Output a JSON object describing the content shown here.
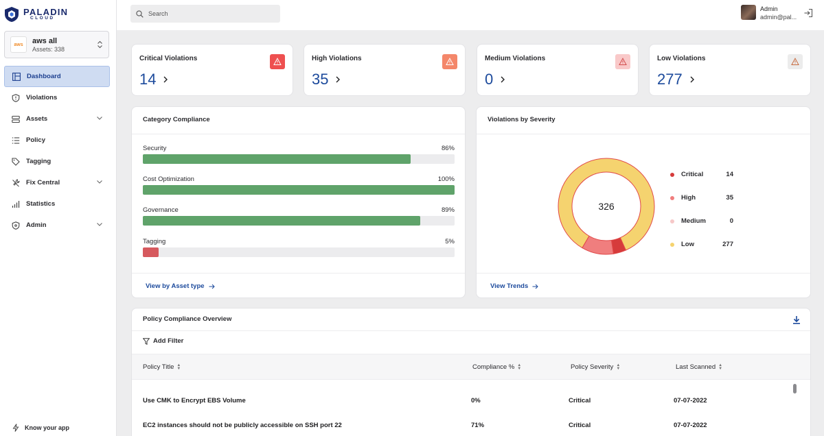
{
  "brand": {
    "name": "PALADIN",
    "sub": "CLOUD"
  },
  "account": {
    "logo": "aws",
    "name": "aws all",
    "assets": "Assets: 338"
  },
  "nav": [
    {
      "label": "Dashboard",
      "icon": "dashboard-icon",
      "active": true
    },
    {
      "label": "Violations",
      "icon": "shield-icon"
    },
    {
      "label": "Assets",
      "icon": "stack-icon",
      "expandable": true
    },
    {
      "label": "Policy",
      "icon": "list-icon"
    },
    {
      "label": "Tagging",
      "icon": "tag-icon"
    },
    {
      "label": "Fix Central",
      "icon": "wrench-icon",
      "expandable": true
    },
    {
      "label": "Statistics",
      "icon": "bars-icon"
    },
    {
      "label": "Admin",
      "icon": "shield-icon",
      "expandable": true
    }
  ],
  "know_app": "Know your app",
  "search": {
    "placeholder": "Search"
  },
  "user": {
    "name": "Admin",
    "email": "admin@pal..."
  },
  "severity_cards": [
    {
      "title": "Critical Violations",
      "count": "14",
      "color": "#ee5050",
      "icon_color": "#ffffff"
    },
    {
      "title": "High Violations",
      "count": "35",
      "color": "#f4876a",
      "icon_color": "#ffffff"
    },
    {
      "title": "Medium Violations",
      "count": "0",
      "color": "#f9c9c9",
      "icon_color": "#d24b4b"
    },
    {
      "title": "Low Violations",
      "count": "277",
      "color": "#ececec",
      "icon_color": "#c76b3f"
    }
  ],
  "category_compliance": {
    "title": "Category Compliance",
    "link": "View by Asset type",
    "items": [
      {
        "label": "Security",
        "pct": "86%",
        "value": 86,
        "color": "#5fa36a"
      },
      {
        "label": "Cost Optimization",
        "pct": "100%",
        "value": 100,
        "color": "#5fa36a"
      },
      {
        "label": "Governance",
        "pct": "89%",
        "value": 89,
        "color": "#5fa36a"
      },
      {
        "label": "Tagging",
        "pct": "5%",
        "value": 5,
        "color": "#d6595e"
      }
    ]
  },
  "violations_by_severity": {
    "title": "Violations by Severity",
    "link": "View Trends",
    "total": "326"
  },
  "chart_data": {
    "type": "pie",
    "title": "Violations by Severity",
    "center_label": "326",
    "categories": [
      "Critical",
      "High",
      "Medium",
      "Low"
    ],
    "values": [
      14,
      35,
      0,
      277
    ],
    "colors": [
      "#d63b3b",
      "#f07e7e",
      "#f6c8c8",
      "#f5d36f"
    ],
    "legend": "right"
  },
  "policy_table": {
    "title": "Policy Compliance Overview",
    "filter": "Add Filter",
    "columns": [
      "Policy Title",
      "Compliance %",
      "Policy Severity",
      "Last Scanned"
    ],
    "rows": [
      {
        "title": "Use CMK to Encrypt EBS Volume",
        "compliance": "0%",
        "severity": "Critical",
        "scanned": "07-07-2022"
      },
      {
        "title": "EC2 instances should not be publicly accessible on SSH port 22",
        "compliance": "71%",
        "severity": "Critical",
        "scanned": "07-07-2022"
      }
    ]
  }
}
